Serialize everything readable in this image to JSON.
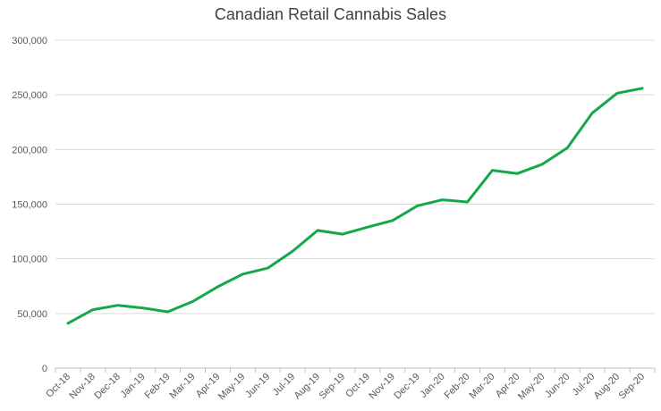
{
  "chart_data": {
    "type": "line",
    "title": "Canadian Retail Cannabis Sales",
    "xlabel": "",
    "ylabel": "",
    "categories": [
      "Oct-18",
      "Nov-18",
      "Dec-18",
      "Jan-19",
      "Feb-19",
      "Mar-19",
      "Apr-19",
      "May-19",
      "Jun-19",
      "Jul-19",
      "Aug-19",
      "Sep-19",
      "Oct-19",
      "Nov-19",
      "Dec-19",
      "Jan-20",
      "Feb-20",
      "Mar-20",
      "Apr-20",
      "May-20",
      "Jun-20",
      "Jul-20",
      "Aug-20",
      "Sep-20"
    ],
    "series": [
      {
        "name": "Retail Cannabis Sales",
        "color": "#14a84b",
        "values": [
          41000,
          53500,
          57500,
          55000,
          51500,
          61000,
          74500,
          86000,
          91500,
          107000,
          126000,
          122500,
          129000,
          135000,
          148500,
          154000,
          152000,
          181000,
          178000,
          186500,
          201500,
          233500,
          251500,
          256000
        ]
      }
    ],
    "ylim": [
      0,
      300000
    ],
    "yticks": [
      0,
      50000,
      100000,
      150000,
      200000,
      250000,
      300000
    ],
    "ytick_labels": [
      "0",
      "50,000",
      "100,000",
      "150,000",
      "200,000",
      "250,000",
      "300,000"
    ],
    "grid": true,
    "legend": "none"
  }
}
